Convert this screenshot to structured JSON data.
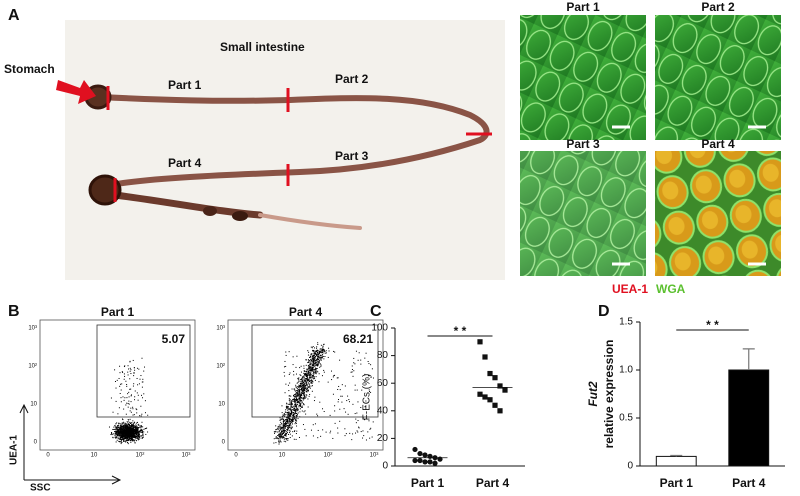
{
  "panel_a": {
    "label": "A",
    "stomach": "Stomach",
    "title": "Small intestine",
    "parts": [
      "Part 1",
      "Part 2",
      "Part 3",
      "Part 4"
    ],
    "micrograph_titles": [
      "Part 1",
      "Part 2",
      "Part 3",
      "Part 4"
    ],
    "legend": [
      "UEA-1",
      "WGA"
    ]
  },
  "panel_b": {
    "label": "B",
    "plots": [
      {
        "title": "Part 1",
        "gate": "5.07"
      },
      {
        "title": "Part 4",
        "gate": "68.21"
      }
    ],
    "ylabel": "UEA-1",
    "xlabel": "SSC",
    "yticks": [
      "10³",
      "10²",
      "10",
      "0"
    ],
    "xticks": [
      "0",
      "10",
      "10²",
      "10³"
    ]
  },
  "panel_c": {
    "label": "C"
  },
  "panel_d": {
    "label": "D"
  },
  "chart_data": [
    {
      "type": "strip",
      "ylabel": "F-ECs (%)",
      "categories": [
        "Part 1",
        "Part 4"
      ],
      "values": [
        [
          12,
          9,
          8,
          7,
          6,
          5,
          4,
          4,
          3,
          3,
          2
        ],
        [
          90,
          79,
          67,
          64,
          58,
          55,
          52,
          50,
          48,
          44,
          40
        ]
      ],
      "means": [
        6,
        57
      ],
      "annotation": "* *",
      "ylim": [
        0,
        100
      ],
      "yticks": [
        0,
        20,
        40,
        60,
        80,
        100
      ]
    },
    {
      "type": "bar",
      "ylabel": [
        "Fut2",
        "relative expression"
      ],
      "categories": [
        "Part 1",
        "Part 4"
      ],
      "values": [
        0.1,
        1.0
      ],
      "errors": [
        0.01,
        0.22
      ],
      "colors": [
        "#ffffff",
        "#000000"
      ],
      "annotation": "* *",
      "ylim": [
        0,
        1.5
      ],
      "yticks": [
        0,
        0.5,
        {
          "value": 1.0,
          "label": "1.0"
        },
        1.5
      ]
    }
  ]
}
